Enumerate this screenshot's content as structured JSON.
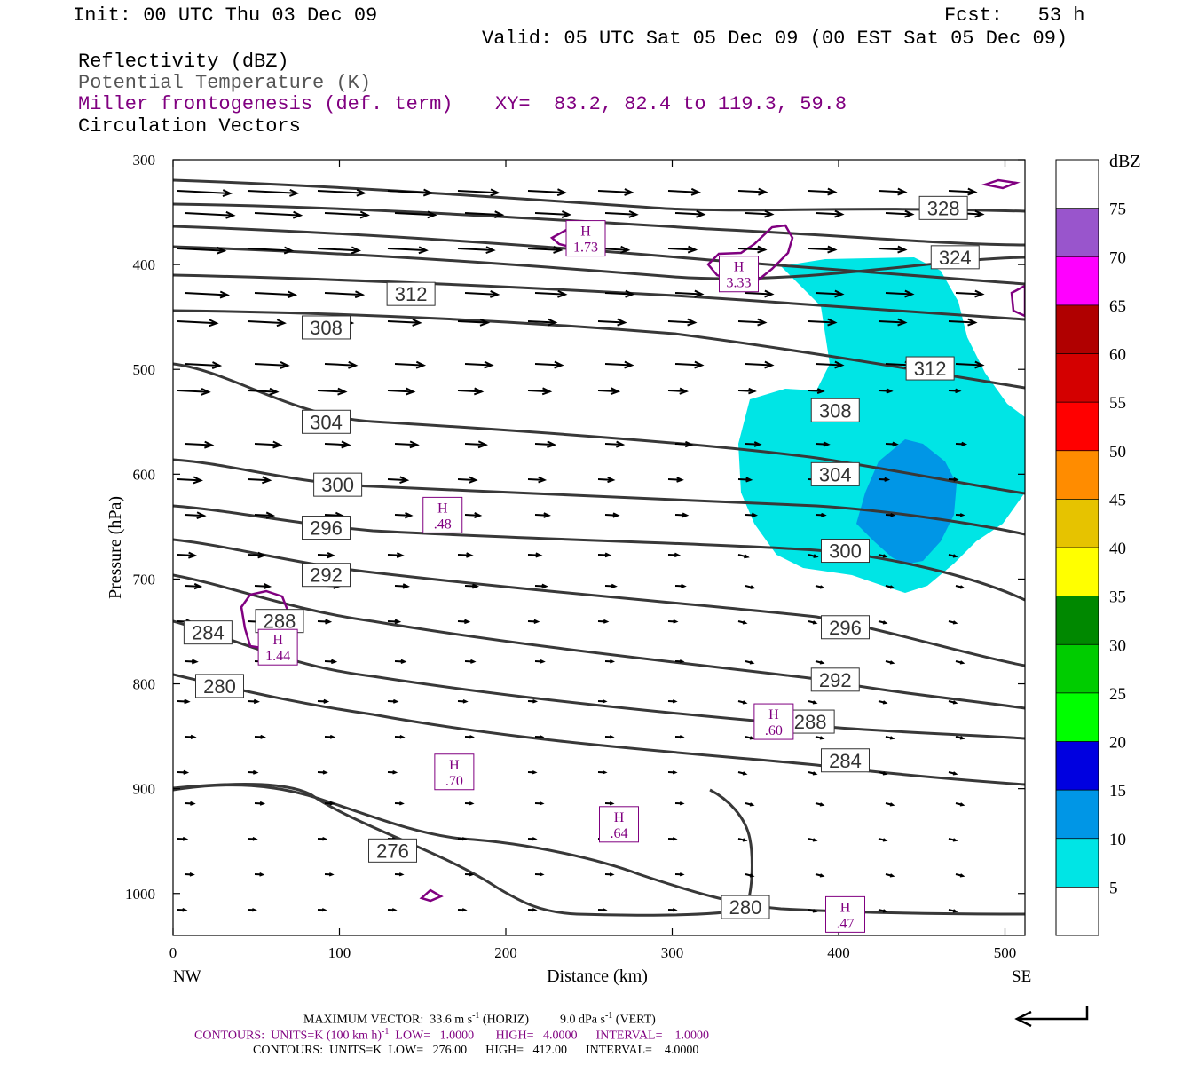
{
  "header": {
    "init": "Init: 00 UTC Thu 03 Dec 09",
    "fcst": "Fcst:   53 h",
    "valid": "Valid: 05 UTC Sat 05 Dec 09 (00 EST Sat 05 Dec 09)",
    "field1": "Reflectivity (dBZ)",
    "field2": "Potential Temperature (K)",
    "field3": "Miller frontogenesis (def. term)",
    "xy": "XY=  83.2, 82.4 to 119.3, 59.8",
    "field4": "Circulation Vectors"
  },
  "chart_data": {
    "type": "contour-cross-section",
    "xlabel": "Distance (km)",
    "ylabel": "Pressure (hPa)",
    "xlim": [
      0,
      512
    ],
    "ylim": [
      300,
      1040
    ],
    "x_ticks": [
      0,
      100,
      200,
      300,
      400,
      500
    ],
    "y_ticks": [
      300,
      400,
      500,
      600,
      700,
      800,
      900,
      1000
    ],
    "x_end_labels": {
      "left": "NW",
      "right": "SE"
    },
    "colorbar": {
      "title": "dBZ",
      "levels": [
        5,
        10,
        15,
        20,
        25,
        30,
        35,
        40,
        45,
        50,
        55,
        60,
        65,
        70,
        75
      ],
      "colors": [
        "#00e5e5",
        "#0096e6",
        "#0000e0",
        "#00ff00",
        "#00cc00",
        "#008800",
        "#ffff00",
        "#e6c300",
        "#ff8c00",
        "#ff0000",
        "#d40000",
        "#b00000",
        "#ff00ff",
        "#9955cc",
        "#ffffff"
      ]
    },
    "theta_labels": [
      {
        "label": "328",
        "x": 463,
        "p": 346
      },
      {
        "label": "324",
        "x": 470,
        "p": 393
      },
      {
        "label": "312",
        "x": 143,
        "p": 428
      },
      {
        "label": "308",
        "x": 92,
        "p": 460
      },
      {
        "label": "312",
        "x": 455,
        "p": 499
      },
      {
        "label": "304",
        "x": 92,
        "p": 550
      },
      {
        "label": "308",
        "x": 398,
        "p": 539
      },
      {
        "label": "300",
        "x": 99,
        "p": 610
      },
      {
        "label": "304",
        "x": 398,
        "p": 600
      },
      {
        "label": "296",
        "x": 92,
        "p": 651
      },
      {
        "label": "300",
        "x": 404,
        "p": 673
      },
      {
        "label": "292",
        "x": 92,
        "p": 696
      },
      {
        "label": "288",
        "x": 64,
        "p": 740
      },
      {
        "label": "296",
        "x": 404,
        "p": 746
      },
      {
        "label": "284",
        "x": 21,
        "p": 751
      },
      {
        "label": "280",
        "x": 28,
        "p": 802
      },
      {
        "label": "292",
        "x": 398,
        "p": 796
      },
      {
        "label": "288",
        "x": 383,
        "p": 836
      },
      {
        "label": "284",
        "x": 404,
        "p": 873
      },
      {
        "label": "276",
        "x": 132,
        "p": 959
      },
      {
        "label": "280",
        "x": 344,
        "p": 1013
      }
    ],
    "frontogenesis_maxima": [
      {
        "label": "1.73",
        "x": 248,
        "p": 375
      },
      {
        "label": "3.33",
        "x": 340,
        "p": 409
      },
      {
        "label": ".48",
        "x": 162,
        "p": 639
      },
      {
        "label": "1.44",
        "x": 63,
        "p": 765
      },
      {
        "label": ".60",
        "x": 361,
        "p": 836
      },
      {
        "label": ".70",
        "x": 169,
        "p": 884
      },
      {
        "label": ".64",
        "x": 268,
        "p": 934
      },
      {
        "label": ".47",
        "x": 404,
        "p": 1020
      }
    ],
    "vector_scale": {
      "horizontal": "33.6 m s",
      "vertical": "9.0 dPa s"
    }
  },
  "footer": {
    "maxvec_a": "MAXIMUM VECTOR:  33.6 m s",
    "maxvec_exp1": "-1",
    "maxvec_b": " (HORIZ)          9.0 dPa s",
    "maxvec_exp2": "-1",
    "maxvec_c": " (VERT)",
    "c1_a": "CONTOURS:  UNITS=K (100 km h)",
    "c1_exp": "-1",
    "c1_b": "  LOW=   1.0000       HIGH=   4.0000      INTERVAL=    1.0000",
    "c2": "CONTOURS:  UNITS=K  LOW=   276.00      HIGH=   412.00      INTERVAL=    4.0000"
  }
}
